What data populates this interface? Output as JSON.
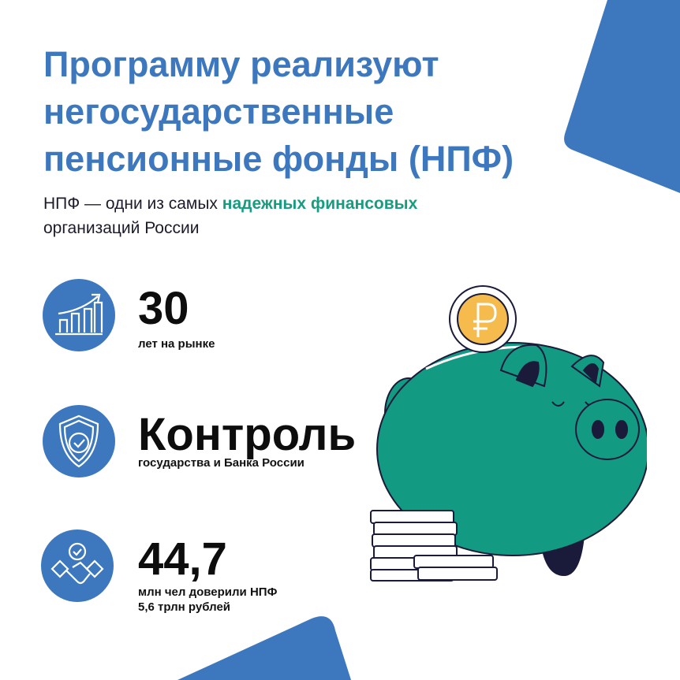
{
  "colors": {
    "accent_blue": "#3d78bf",
    "accent_green": "#179c80",
    "pig": "#139a82",
    "coin": "#f5bb4c"
  },
  "title": [
    "Программу реализуют",
    "негосударственные",
    "пенсионные фонды (НПФ)"
  ],
  "subtitle": {
    "before": "НПФ — одни из самых ",
    "highlight": "надежных финансовых",
    "after": "организаций России"
  },
  "stats": [
    {
      "icon": "growth-chart-icon",
      "value": "30",
      "label": "лет на рынке"
    },
    {
      "icon": "shield-check-icon",
      "value": "Контроль",
      "label": "государства и Банка России"
    },
    {
      "icon": "handshake-icon",
      "value": "44,7",
      "label": "млн чел доверили НПФ",
      "label2": "5,6 трлн рублей"
    }
  ]
}
